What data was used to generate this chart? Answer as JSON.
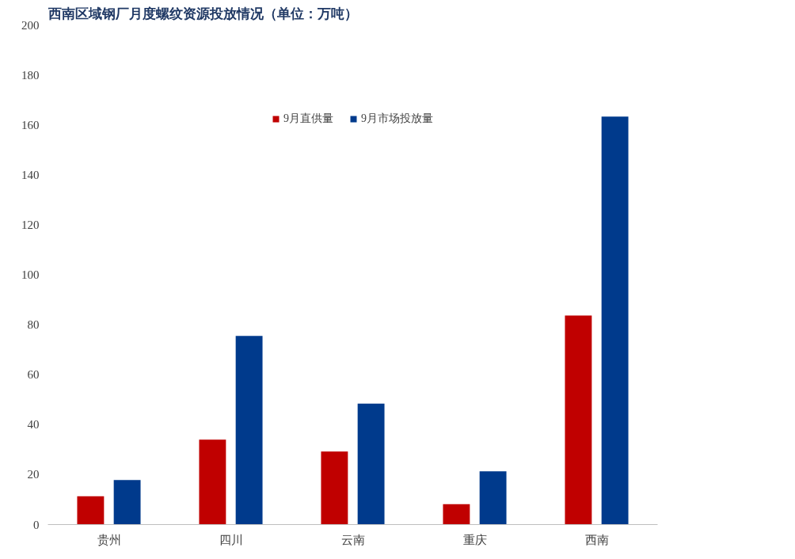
{
  "chart_data": {
    "type": "bar",
    "title": "西南区域钢厂月度螺纹资源投放情况（单位：万吨）",
    "categories": [
      "贵州",
      "四川",
      "云南",
      "重庆",
      "西南"
    ],
    "series": [
      {
        "name": "9月直供量",
        "color": "#c00000",
        "values": [
          11.3,
          34,
          29.2,
          8.2,
          83.7
        ]
      },
      {
        "name": "9月市场投放量",
        "color": "#003a8c",
        "values": [
          17.8,
          75.5,
          48.4,
          21.3,
          163.3
        ]
      }
    ],
    "ylim": [
      0,
      200
    ],
    "yticks": [
      0,
      20,
      40,
      60,
      80,
      100,
      120,
      140,
      160,
      180,
      200
    ],
    "grid": false,
    "legend": "top"
  }
}
